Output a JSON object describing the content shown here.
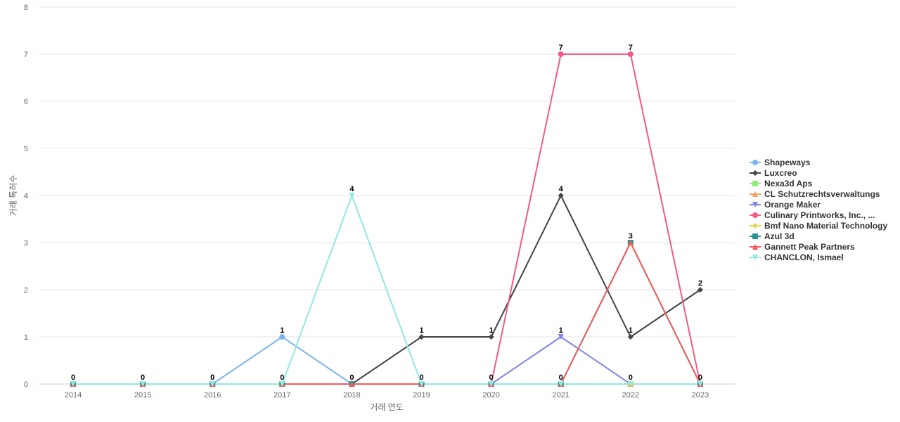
{
  "chart_data": {
    "type": "line",
    "title": "",
    "xlabel": "거래 연도",
    "ylabel": "거래 특허수",
    "x": [
      "2014",
      "2015",
      "2016",
      "2017",
      "2018",
      "2019",
      "2020",
      "2021",
      "2022",
      "2023"
    ],
    "ylim": [
      0,
      8
    ],
    "yticks": [
      0,
      1,
      2,
      3,
      4,
      5,
      6,
      7,
      8
    ],
    "grid": true,
    "legend_position": "right",
    "series": [
      {
        "name": "Shapeways",
        "color": "#7cb5ec",
        "marker": "circle",
        "values": [
          0,
          0,
          0,
          1,
          0,
          0,
          0,
          0,
          0,
          0
        ]
      },
      {
        "name": "Luxcreo",
        "color": "#434348",
        "marker": "diamond",
        "values": [
          0,
          0,
          0,
          0,
          0,
          1,
          1,
          4,
          1,
          2
        ]
      },
      {
        "name": "Nexa3d Aps",
        "color": "#90ed7d",
        "marker": "square",
        "values": [
          0,
          0,
          0,
          0,
          0,
          0,
          0,
          0,
          0,
          0
        ]
      },
      {
        "name": "CL Schutzrechtsverwaltungs",
        "color": "#f7a35c",
        "marker": "triangle",
        "values": [
          0,
          0,
          0,
          0,
          0,
          0,
          0,
          0,
          0,
          0
        ]
      },
      {
        "name": "Orange Maker",
        "color": "#8085e9",
        "marker": "triangle-down",
        "values": [
          0,
          0,
          0,
          0,
          0,
          0,
          0,
          1,
          0,
          0
        ]
      },
      {
        "name": "Culinary Printworks, Inc., ...",
        "color": "#f15c80",
        "marker": "circle",
        "values": [
          0,
          0,
          0,
          0,
          0,
          0,
          0,
          7,
          7,
          0
        ]
      },
      {
        "name": "Bmf Nano Material Technology",
        "color": "#e4d354",
        "marker": "diamond",
        "values": [
          0,
          0,
          0,
          0,
          0,
          0,
          0,
          0,
          0,
          0
        ]
      },
      {
        "name": "Azul 3d",
        "color": "#2b908f",
        "marker": "square",
        "values": [
          0,
          0,
          0,
          0,
          0,
          0,
          0,
          0,
          3,
          0
        ]
      },
      {
        "name": "Gannett Peak Partners",
        "color": "#f45b5b",
        "marker": "triangle",
        "values": [
          0,
          0,
          0,
          0,
          0,
          0,
          0,
          0,
          3,
          0
        ]
      },
      {
        "name": "CHANCLON, Ismael",
        "color": "#91e8e1",
        "marker": "triangle-down",
        "values": [
          0,
          0,
          0,
          0,
          4,
          0,
          0,
          0,
          0,
          0
        ]
      }
    ],
    "data_labels": [
      {
        "series": "Culinary Printworks, Inc., ...",
        "x": "2014",
        "value": 0
      },
      {
        "series": "Culinary Printworks, Inc., ...",
        "x": "2015",
        "value": 0
      },
      {
        "series": "Culinary Printworks, Inc., ...",
        "x": "2016",
        "value": 0
      },
      {
        "series": "Shapeways",
        "x": "2017",
        "value": 1
      },
      {
        "series": "Culinary Printworks, Inc., ...",
        "x": "2017",
        "value": 0
      },
      {
        "series": "CHANCLON, Ismael",
        "x": "2018",
        "value": 4
      },
      {
        "series": "Culinary Printworks, Inc., ...",
        "x": "2018",
        "value": 0
      },
      {
        "series": "Luxcreo",
        "x": "2019",
        "value": 1
      },
      {
        "series": "Culinary Printworks, Inc., ...",
        "x": "2019",
        "value": 0
      },
      {
        "series": "Luxcreo",
        "x": "2020",
        "value": 1
      },
      {
        "series": "Culinary Printworks, Inc., ...",
        "x": "2020",
        "value": 0
      },
      {
        "series": "Culinary Printworks, Inc., ...",
        "x": "2021",
        "value": 7
      },
      {
        "series": "Luxcreo",
        "x": "2021",
        "value": 4
      },
      {
        "series": "Orange Maker",
        "x": "2021",
        "value": 1
      },
      {
        "series": "Nexa3d Aps",
        "x": "2021",
        "value": 0
      },
      {
        "series": "Culinary Printworks, Inc., ...",
        "x": "2022",
        "value": 7
      },
      {
        "series": "Azul 3d",
        "x": "2022",
        "value": 3
      },
      {
        "series": "Luxcreo",
        "x": "2022",
        "value": 1
      },
      {
        "series": "Nexa3d Aps",
        "x": "2022",
        "value": 0
      },
      {
        "series": "Luxcreo",
        "x": "2023",
        "value": 2
      },
      {
        "series": "Culinary Printworks, Inc., ...",
        "x": "2023",
        "value": 0
      }
    ]
  }
}
